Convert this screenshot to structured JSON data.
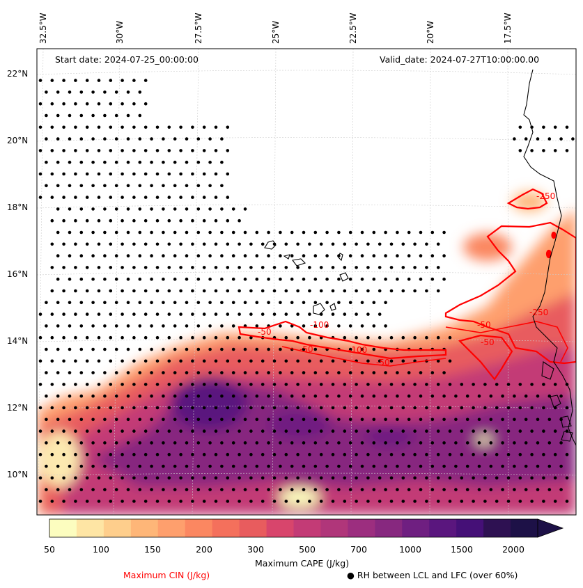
{
  "map": {
    "start_label": "Start date: 2024-07-25_00:00:00",
    "valid_label": "Valid_date: 2024-07-27T10:00:00.00",
    "lon_labels": [
      "32.5°W",
      "30°W",
      "27.5°W",
      "25°W",
      "22.5°W",
      "20°W",
      "17.5°W"
    ],
    "lat_labels": [
      "22°N",
      "20°N",
      "18°N",
      "16°N",
      "14°N",
      "12°N",
      "10°N"
    ],
    "cin_contour_labels": [
      "-50",
      "-100",
      "-50",
      "-50",
      "-100",
      "-50",
      "-250",
      "-50",
      "-250"
    ]
  },
  "colorbar": {
    "ticks": [
      "50",
      "100",
      "150",
      "200",
      "300",
      "500",
      "700",
      "1000",
      "1500",
      "2000"
    ],
    "label": "Maximum CAPE (J/kg)",
    "colors": [
      "#fcfdbf",
      "#fee5a4",
      "#fece8c",
      "#feb678",
      "#fe9f6d",
      "#fb8761",
      "#f4705c",
      "#e85c5e",
      "#d8456c",
      "#c33b76",
      "#b0367a",
      "#9c2e7f",
      "#87287f",
      "#6f1f81",
      "#5a167e",
      "#451077",
      "#2e1152",
      "#1d1147"
    ]
  },
  "legend": {
    "cin_label": "Maximum CIN (J/kg)",
    "rh_label": "● RH between LCL and LFC (over 60%)"
  },
  "colors": {
    "cin_contour": "#ff0000",
    "dots": "#000000",
    "coast": "#000000"
  }
}
